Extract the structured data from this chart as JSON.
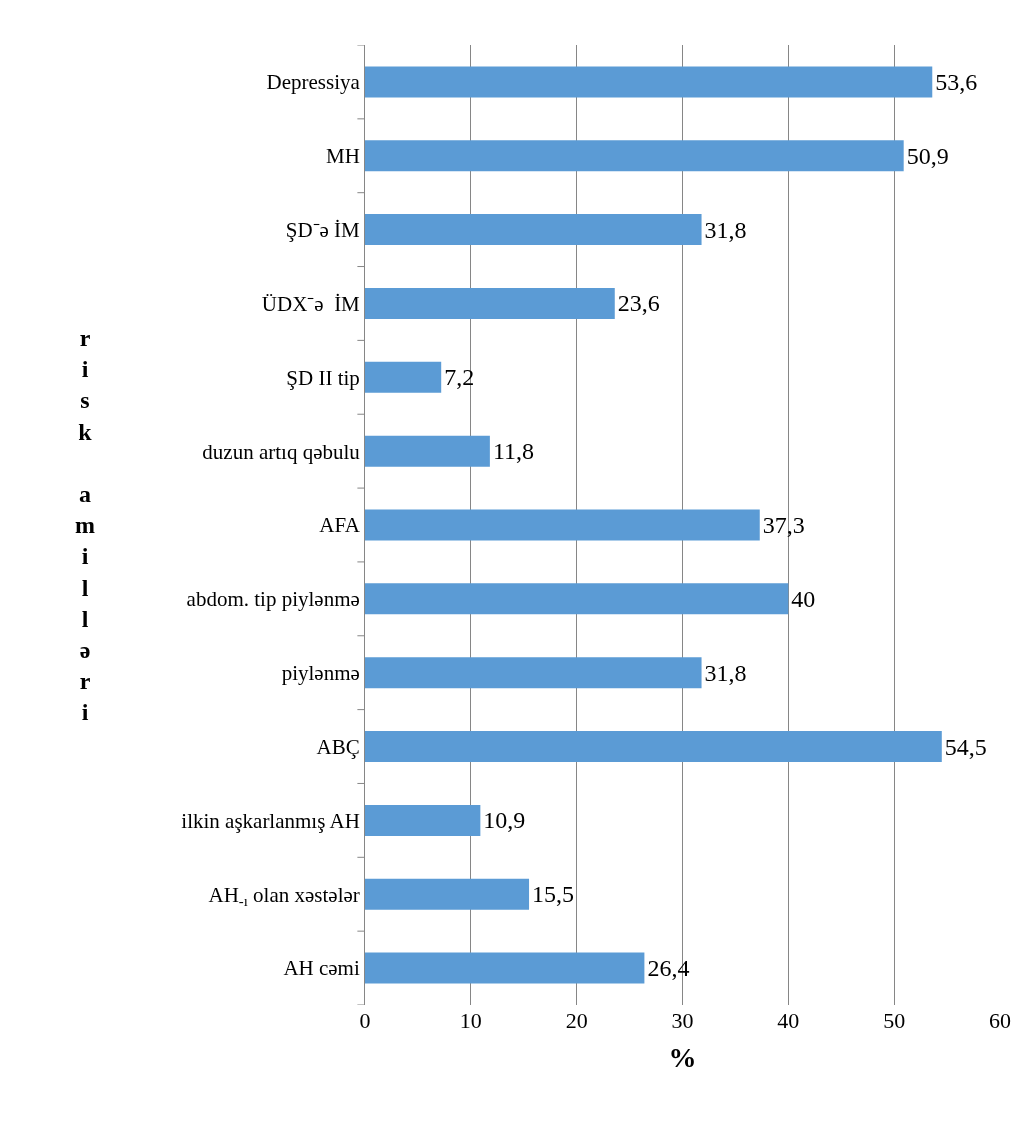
{
  "chart_data": {
    "type": "bar",
    "orientation": "horizontal",
    "xlabel": "%",
    "ylabel": "risk amilləri",
    "categories": [
      "Depressiya",
      "MH",
      "ŞD⁻ə İM",
      "ÜDX⁻ə  İM",
      "ŞD II tip",
      "duzun artıq qəbulu",
      "AFA",
      "abdom. tip piylənmə",
      "piylənmə",
      "ABÇ",
      "ilkin aşkarlanmış AH",
      "AH$_{-ı}$ olan xəstələr",
      "AH cəmi"
    ],
    "values": [
      53.6,
      50.9,
      31.8,
      23.6,
      7.2,
      11.8,
      37.3,
      40,
      31.8,
      54.5,
      10.9,
      15.5,
      26.4
    ],
    "value_labels": [
      "53,6",
      "50,9",
      "31,8",
      "23,6",
      "7,2",
      "11,8",
      "37,3",
      "40",
      "31,8",
      "54,5",
      "10,9",
      "15,5",
      "26,4"
    ],
    "color": "#5b9bd5",
    "xlim": [
      0,
      60
    ],
    "xticks": [
      0,
      10,
      20,
      30,
      40,
      50,
      60
    ],
    "grid": "x",
    "legend": false
  }
}
